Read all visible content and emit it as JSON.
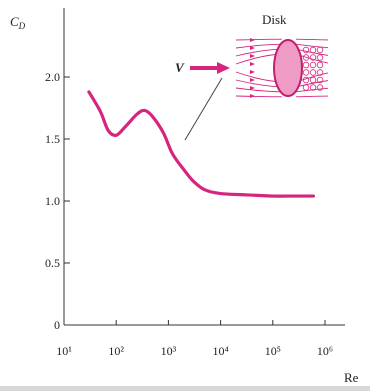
{
  "chart_data": {
    "type": "line",
    "xscale": "log",
    "x_ticks": [
      10,
      100,
      1000,
      10000,
      100000,
      1000000
    ],
    "x_tick_labels": [
      "10¹",
      "10²",
      "10³",
      "10⁴",
      "10⁵",
      "10⁶"
    ],
    "y_ticks": [
      0,
      0.5,
      1.0,
      1.5,
      2.0
    ],
    "y_tick_labels": [
      "0",
      "0.5",
      "1.0",
      "1.5",
      "2.0"
    ],
    "xlabel": "Re",
    "ylabel": "C_D",
    "xlim": [
      10,
      1000000
    ],
    "ylim": [
      0,
      2.5
    ],
    "grid": false,
    "color": "#d6257f",
    "series": [
      {
        "x": [
          30,
          50,
          70,
          100,
          150,
          250,
          350,
          500,
          800,
          1200,
          2000,
          3000,
          5000,
          10000,
          30000,
          100000,
          300000,
          600000
        ],
        "y": [
          1.88,
          1.72,
          1.57,
          1.53,
          1.6,
          1.7,
          1.73,
          1.68,
          1.55,
          1.38,
          1.25,
          1.16,
          1.09,
          1.06,
          1.05,
          1.04,
          1.04,
          1.04
        ]
      }
    ],
    "annotations": {
      "inset_label": "Disk",
      "velocity_label": "V"
    }
  }
}
